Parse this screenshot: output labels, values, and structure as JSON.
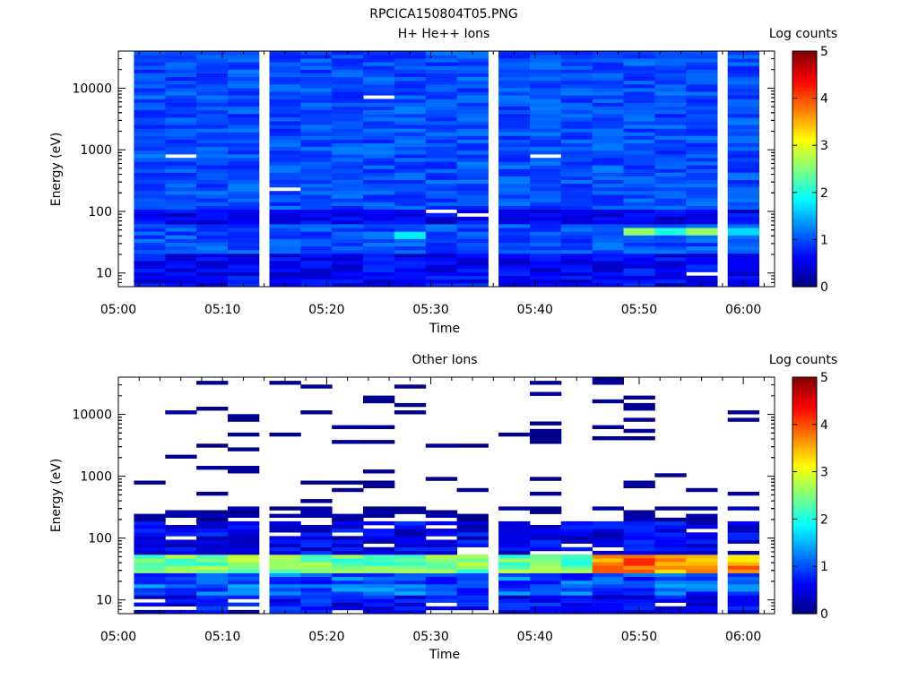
{
  "figure": {
    "title": "RPCICA150804T05.PNG"
  },
  "chart_data": [
    {
      "type": "heatmap",
      "title": "H+ He++ Ions",
      "xlabel": "Time",
      "ylabel": "Energy (eV)",
      "x_ticks": [
        "05:00",
        "05:10",
        "05:20",
        "05:30",
        "05:40",
        "05:50",
        "06:00"
      ],
      "xlim": [
        "05:00",
        "06:03"
      ],
      "y_scale": "log",
      "y_ticks": [
        10,
        100,
        1000,
        10000
      ],
      "ylim": [
        6,
        40000
      ],
      "colorbar": {
        "label": "Log counts",
        "min": 0,
        "max": 5,
        "ticks": [
          0,
          1,
          2,
          3,
          4,
          5
        ],
        "colormap": "jet"
      },
      "time_bins": [
        "05:03",
        "05:06",
        "05:09",
        "05:12",
        "05:16",
        "05:19",
        "05:22",
        "05:25",
        "05:28",
        "05:31",
        "05:34",
        "05:38",
        "05:41",
        "05:44",
        "05:47",
        "05:50",
        "05:53",
        "05:56",
        "06:00"
      ],
      "energy_range_eV": [
        6,
        40000
      ],
      "notes_visible": "background levels ~1 log count across all energies; enhanced band near 40-60 eV after 05:48 reaching ~2.5",
      "enhancements": [
        {
          "time": "05:28",
          "energy_eV": 40,
          "log_counts": 1.8
        },
        {
          "time": "05:50",
          "energy_eV": 50,
          "log_counts": 2.6
        },
        {
          "time": "05:53",
          "energy_eV": 50,
          "log_counts": 2.0
        },
        {
          "time": "05:56",
          "energy_eV": 50,
          "log_counts": 2.6
        },
        {
          "time": "06:00",
          "energy_eV": 45,
          "log_counts": 1.7
        }
      ]
    },
    {
      "type": "heatmap",
      "title": "Other Ions",
      "xlabel": "Time",
      "ylabel": "Energy (eV)",
      "x_ticks": [
        "05:00",
        "05:10",
        "05:20",
        "05:30",
        "05:40",
        "05:50",
        "06:00"
      ],
      "xlim": [
        "05:00",
        "06:03"
      ],
      "y_scale": "log",
      "y_ticks": [
        10,
        100,
        1000,
        10000
      ],
      "ylim": [
        6,
        40000
      ],
      "colorbar": {
        "label": "Log counts",
        "min": 0,
        "max": 5,
        "ticks": [
          0,
          1,
          2,
          3,
          4,
          5
        ],
        "colormap": "jet"
      },
      "time_bins": [
        "05:03",
        "05:06",
        "05:09",
        "05:12",
        "05:16",
        "05:19",
        "05:22",
        "05:25",
        "05:28",
        "05:31",
        "05:34",
        "05:38",
        "05:41",
        "05:44",
        "05:47",
        "05:50",
        "05:53",
        "05:56",
        "06:00"
      ],
      "energy_range_eV": [
        6,
        40000
      ],
      "peak_band": {
        "energy_eV": [
          35,
          45
        ],
        "max_log_counts": 4.2,
        "time_of_max": "05:50"
      }
    }
  ]
}
